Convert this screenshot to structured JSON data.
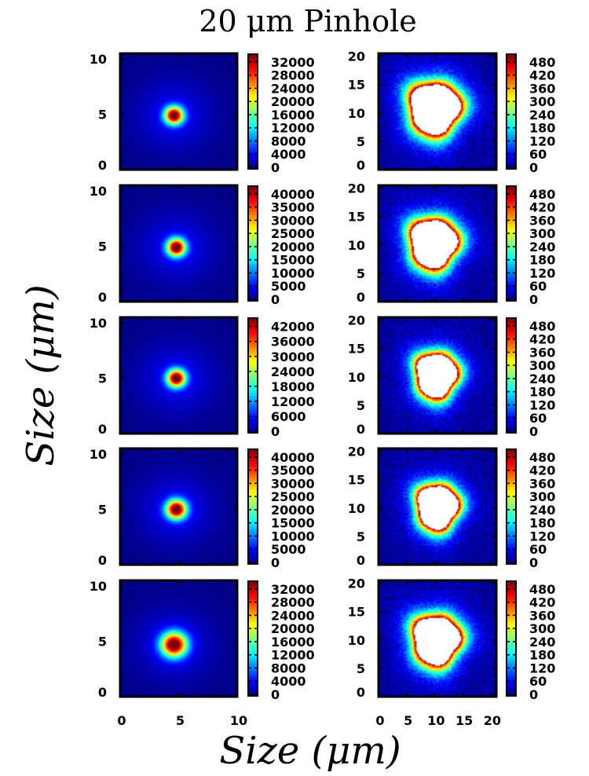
{
  "chart_data": {
    "type": "heatmap",
    "title": "20 μm Pinhole",
    "xlabel": "Size (μm)",
    "ylabel": "Size (μm)",
    "colormap": [
      "#00007f",
      "#0000ff",
      "#007fff",
      "#00ffff",
      "#7fff7f",
      "#ffff00",
      "#ff7f00",
      "#ff0000",
      "#7f0000"
    ],
    "saturated_color": "#ffffff",
    "columns": [
      {
        "xlim": [
          0,
          10
        ],
        "ylim": [
          0,
          10.5
        ],
        "xticks": [
          "0",
          "5",
          "10"
        ],
        "yticks": [
          "0",
          "5",
          "10"
        ]
      },
      {
        "xlim": [
          0,
          21
        ],
        "ylim": [
          0,
          20.5
        ],
        "xticks": [
          "0",
          "5",
          "10",
          "15",
          "20"
        ],
        "yticks": [
          "0",
          "5",
          "10",
          "15",
          "20"
        ]
      }
    ],
    "rows": [
      {
        "left": {
          "cx": 4.6,
          "cy": 4.9,
          "sigma": 0.55,
          "peak": 33000,
          "colorbar": [
            "0",
            "4000",
            "8000",
            "12000",
            "16000",
            "20000",
            "24000",
            "28000",
            "32000"
          ]
        },
        "right": {
          "cx": 10.0,
          "cy": 10.8,
          "rx": 4.3,
          "ry": 4.4,
          "vmax": 480,
          "colorbar": [
            "0",
            "60",
            "120",
            "180",
            "240",
            "300",
            "360",
            "420",
            "480"
          ]
        }
      },
      {
        "left": {
          "cx": 4.8,
          "cy": 4.9,
          "sigma": 0.55,
          "peak": 41000,
          "colorbar": [
            "0",
            "5000",
            "10000",
            "15000",
            "20000",
            "25000",
            "30000",
            "35000",
            "40000"
          ]
        },
        "right": {
          "cx": 9.8,
          "cy": 10.3,
          "rx": 4.0,
          "ry": 4.2,
          "vmax": 480,
          "colorbar": [
            "0",
            "60",
            "120",
            "180",
            "240",
            "300",
            "360",
            "420",
            "480"
          ]
        }
      },
      {
        "left": {
          "cx": 4.8,
          "cy": 5.0,
          "sigma": 0.55,
          "peak": 43000,
          "colorbar": [
            "0",
            "6000",
            "12000",
            "18000",
            "24000",
            "30000",
            "36000",
            "42000"
          ]
        },
        "right": {
          "cx": 10.3,
          "cy": 10.3,
          "rx": 3.5,
          "ry": 3.8,
          "vmax": 480,
          "colorbar": [
            "0",
            "60",
            "120",
            "180",
            "240",
            "300",
            "360",
            "420",
            "480"
          ]
        }
      },
      {
        "left": {
          "cx": 4.8,
          "cy": 5.0,
          "sigma": 0.6,
          "peak": 40500,
          "colorbar": [
            "0",
            "5000",
            "10000",
            "15000",
            "20000",
            "25000",
            "30000",
            "35000",
            "40000"
          ]
        },
        "right": {
          "cx": 10.5,
          "cy": 10.2,
          "rx": 3.5,
          "ry": 3.8,
          "vmax": 480,
          "colorbar": [
            "0",
            "60",
            "120",
            "180",
            "240",
            "300",
            "360",
            "420",
            "480"
          ]
        }
      },
      {
        "left": {
          "cx": 4.6,
          "cy": 4.7,
          "sigma": 0.75,
          "peak": 32500,
          "colorbar": [
            "0",
            "4000",
            "8000",
            "12000",
            "16000",
            "20000",
            "24000",
            "28000",
            "32000"
          ]
        },
        "right": {
          "cx": 10.3,
          "cy": 10.0,
          "rx": 4.0,
          "ry": 4.2,
          "vmax": 480,
          "colorbar": [
            "0",
            "60",
            "120",
            "180",
            "240",
            "300",
            "360",
            "420",
            "480"
          ]
        }
      }
    ]
  }
}
